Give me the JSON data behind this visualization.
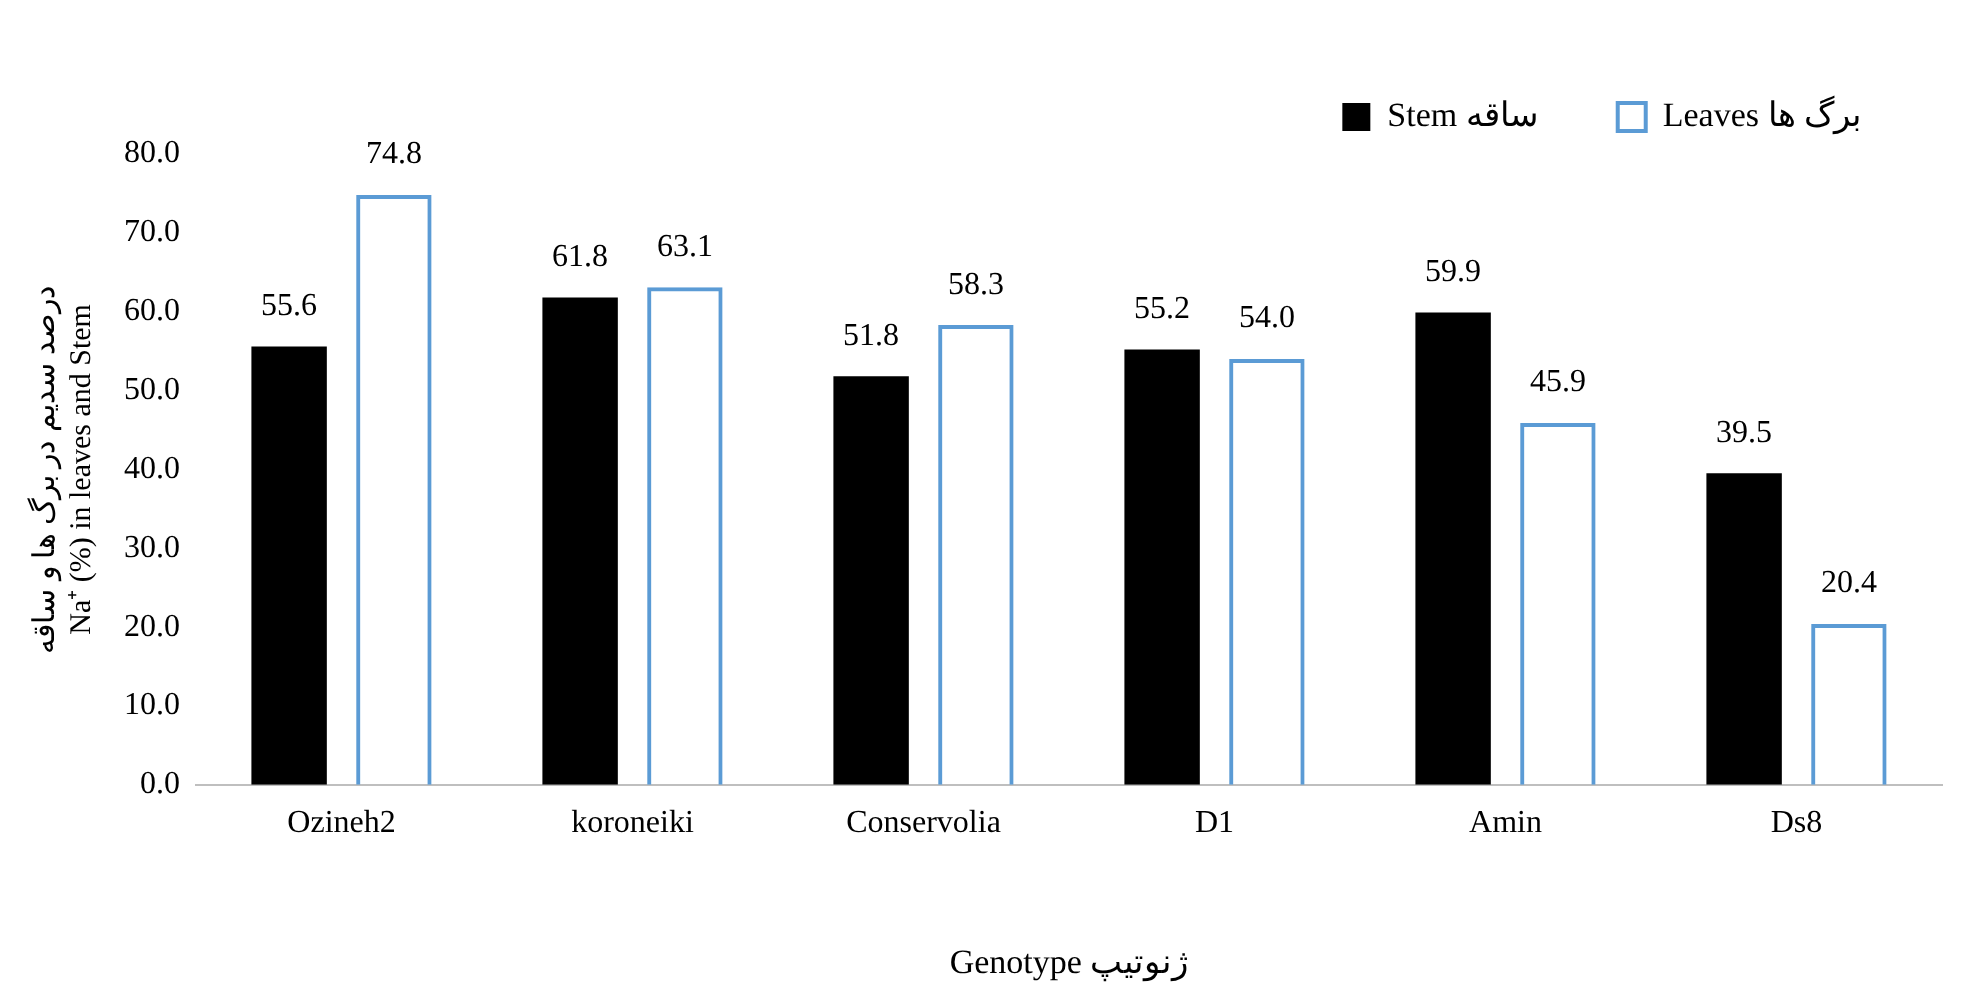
{
  "chart_data": {
    "type": "bar",
    "xlabel": "Genotype ژنوتیپ",
    "ylabel": "درصد سدیم در برگ ها و ساقه\nNa⁺ (%) in leaves and Stem",
    "categories": [
      "Ozineh2",
      "koroneiki",
      "Conservolia",
      "D1",
      "Amin",
      "Ds8"
    ],
    "series": [
      {
        "name": "Stem ساقه",
        "color": "#000000",
        "values": [
          55.6,
          61.8,
          51.8,
          55.2,
          59.9,
          39.5
        ],
        "value_labels": [
          "55.6",
          "61.8",
          "51.8",
          "55.2",
          "59.9",
          "39.5"
        ]
      },
      {
        "name": "Leaves برگ ها",
        "color": "#5b9bd5",
        "values": [
          74.8,
          63.1,
          58.3,
          54.0,
          45.9,
          20.4
        ],
        "value_labels": [
          "74.8",
          "63.1",
          "58.3",
          "54.0",
          "45.9",
          "20.4"
        ]
      }
    ],
    "ylim": [
      0,
      80
    ],
    "yticks": [
      {
        "value": 0,
        "label": "0.0"
      },
      {
        "value": 10,
        "label": "10.0"
      },
      {
        "value": 20,
        "label": "20.0"
      },
      {
        "value": 30,
        "label": "30.0"
      },
      {
        "value": 40,
        "label": "40.0"
      },
      {
        "value": 50,
        "label": "50.0"
      },
      {
        "value": 60,
        "label": "60.0"
      },
      {
        "value": 70,
        "label": "70.0"
      },
      {
        "value": 80,
        "label": "80.0"
      }
    ],
    "grid": false,
    "legend": "top right"
  }
}
